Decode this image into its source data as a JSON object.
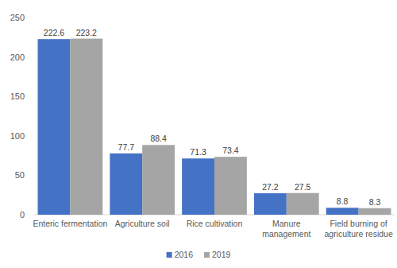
{
  "chart_data": {
    "type": "bar",
    "categories": [
      "Enteric fermentation",
      "Agriculture soil",
      "Rice cultivation",
      "Manure management",
      "Field burning of agriculture residue"
    ],
    "series": [
      {
        "name": "2016",
        "color": "#4472c4",
        "values": [
          222.6,
          77.7,
          71.3,
          27.2,
          8.8
        ]
      },
      {
        "name": "2019",
        "color": "#a5a5a5",
        "values": [
          223.2,
          88.4,
          73.4,
          27.5,
          8.3
        ]
      }
    ],
    "ylim": [
      0,
      250
    ],
    "yticks": [
      0,
      50,
      100,
      150,
      200,
      250
    ],
    "grid": false,
    "data_labels": true,
    "legend": "bottom"
  }
}
